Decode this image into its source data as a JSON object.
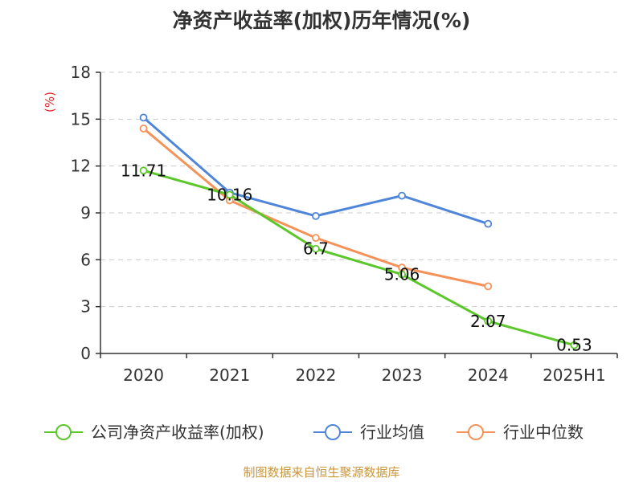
{
  "chart_data": {
    "type": "line",
    "title": "净资产收益率(加权)历年情况(%)",
    "unit": "(%)",
    "categories": [
      "2020",
      "2021",
      "2022",
      "2023",
      "2024",
      "2025H1"
    ],
    "ylim": [
      0,
      18
    ],
    "yticks": [
      "0",
      "3",
      "6",
      "9",
      "12",
      "15",
      "18"
    ],
    "grid": true,
    "legend_position": "bottom",
    "series": [
      {
        "name": "公司净资产收益率(加权)",
        "color": "#5bc72a",
        "values": [
          11.71,
          10.16,
          6.7,
          5.06,
          2.07,
          0.53
        ],
        "labels": [
          "11.71",
          "10.16",
          "6.7",
          "5.06",
          "2.07",
          "0.53"
        ]
      },
      {
        "name": "行业均值",
        "color": "#4f86d9",
        "values": [
          15.1,
          10.3,
          8.8,
          10.1,
          8.3,
          null
        ]
      },
      {
        "name": "行业中位数",
        "color": "#f5925a",
        "values": [
          14.4,
          9.8,
          7.4,
          5.5,
          4.3,
          null
        ]
      }
    ],
    "source": "制图数据来自恒生聚源数据库"
  }
}
